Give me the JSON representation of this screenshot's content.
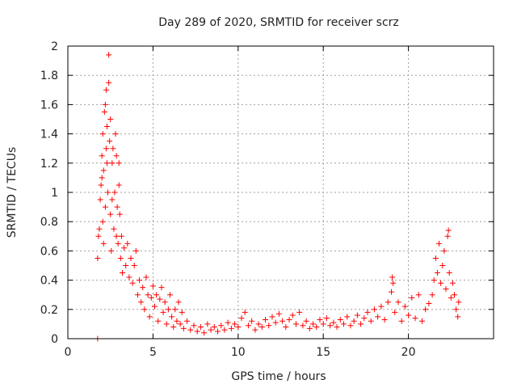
{
  "chart_data": {
    "type": "scatter",
    "title": "Day 289 of 2020, SRMTID for receiver scrz",
    "xlabel": "GPS time / hours",
    "ylabel": "SRMTID / TECUs",
    "xlim": [
      0,
      25
    ],
    "ylim": [
      0,
      2
    ],
    "xticks": [
      0,
      5,
      10,
      15,
      20
    ],
    "yticks": [
      0,
      0.2,
      0.4,
      0.6,
      0.8,
      1,
      1.2,
      1.4,
      1.6,
      1.8,
      2
    ],
    "grid": true,
    "legend": "none",
    "marker": "plus",
    "color": "#ff0000",
    "series": [
      {
        "name": "SRMTID",
        "points": [
          [
            1.75,
            0.0
          ],
          [
            1.75,
            0.55
          ],
          [
            1.8,
            0.7
          ],
          [
            1.85,
            0.75
          ],
          [
            1.9,
            0.95
          ],
          [
            1.95,
            1.05
          ],
          [
            2.0,
            1.1
          ],
          [
            2.0,
            1.25
          ],
          [
            2.05,
            0.8
          ],
          [
            2.05,
            1.4
          ],
          [
            2.1,
            0.65
          ],
          [
            2.1,
            1.15
          ],
          [
            2.15,
            1.55
          ],
          [
            2.2,
            0.9
          ],
          [
            2.2,
            1.6
          ],
          [
            2.25,
            1.3
          ],
          [
            2.25,
            1.7
          ],
          [
            2.3,
            1.2
          ],
          [
            2.3,
            1.45
          ],
          [
            2.35,
            1.0
          ],
          [
            2.4,
            1.75
          ],
          [
            2.4,
            1.94
          ],
          [
            2.45,
            1.35
          ],
          [
            2.5,
            0.85
          ],
          [
            2.5,
            1.5
          ],
          [
            2.55,
            0.6
          ],
          [
            2.6,
            0.95
          ],
          [
            2.6,
            1.2
          ],
          [
            2.65,
            1.3
          ],
          [
            2.7,
            0.75
          ],
          [
            2.75,
            1.0
          ],
          [
            2.8,
            1.4
          ],
          [
            2.85,
            0.7
          ],
          [
            2.85,
            1.25
          ],
          [
            2.9,
            0.9
          ],
          [
            2.95,
            0.65
          ],
          [
            3.0,
            1.05
          ],
          [
            3.0,
            1.2
          ],
          [
            3.05,
            0.85
          ],
          [
            3.1,
            0.55
          ],
          [
            3.15,
            0.7
          ],
          [
            3.2,
            0.45
          ],
          [
            3.3,
            0.62
          ],
          [
            3.4,
            0.5
          ],
          [
            3.5,
            0.65
          ],
          [
            3.6,
            0.42
          ],
          [
            3.7,
            0.55
          ],
          [
            3.8,
            0.38
          ],
          [
            3.9,
            0.5
          ],
          [
            4.0,
            0.6
          ],
          [
            4.1,
            0.3
          ],
          [
            4.2,
            0.4
          ],
          [
            4.3,
            0.25
          ],
          [
            4.4,
            0.35
          ],
          [
            4.5,
            0.2
          ],
          [
            4.6,
            0.42
          ],
          [
            4.7,
            0.3
          ],
          [
            4.8,
            0.15
          ],
          [
            4.9,
            0.28
          ],
          [
            5.0,
            0.36
          ],
          [
            5.1,
            0.22
          ],
          [
            5.2,
            0.3
          ],
          [
            5.3,
            0.12
          ],
          [
            5.4,
            0.27
          ],
          [
            5.5,
            0.35
          ],
          [
            5.6,
            0.18
          ],
          [
            5.7,
            0.25
          ],
          [
            5.8,
            0.1
          ],
          [
            5.9,
            0.2
          ],
          [
            6.0,
            0.3
          ],
          [
            6.1,
            0.15
          ],
          [
            6.2,
            0.08
          ],
          [
            6.3,
            0.2
          ],
          [
            6.4,
            0.12
          ],
          [
            6.5,
            0.25
          ],
          [
            6.6,
            0.1
          ],
          [
            6.7,
            0.18
          ],
          [
            6.8,
            0.07
          ],
          [
            7.0,
            0.12
          ],
          [
            7.2,
            0.06
          ],
          [
            7.4,
            0.09
          ],
          [
            7.6,
            0.05
          ],
          [
            7.8,
            0.08
          ],
          [
            8.0,
            0.04
          ],
          [
            8.2,
            0.1
          ],
          [
            8.4,
            0.06
          ],
          [
            8.6,
            0.08
          ],
          [
            8.8,
            0.05
          ],
          [
            9.0,
            0.09
          ],
          [
            9.2,
            0.06
          ],
          [
            9.4,
            0.11
          ],
          [
            9.6,
            0.07
          ],
          [
            9.8,
            0.1
          ],
          [
            10.0,
            0.08
          ],
          [
            10.2,
            0.14
          ],
          [
            10.4,
            0.18
          ],
          [
            10.6,
            0.09
          ],
          [
            10.8,
            0.12
          ],
          [
            11.0,
            0.06
          ],
          [
            11.2,
            0.1
          ],
          [
            11.4,
            0.08
          ],
          [
            11.6,
            0.13
          ],
          [
            11.8,
            0.09
          ],
          [
            12.0,
            0.15
          ],
          [
            12.2,
            0.11
          ],
          [
            12.4,
            0.17
          ],
          [
            12.6,
            0.12
          ],
          [
            12.8,
            0.08
          ],
          [
            13.0,
            0.13
          ],
          [
            13.2,
            0.16
          ],
          [
            13.4,
            0.1
          ],
          [
            13.6,
            0.18
          ],
          [
            13.8,
            0.09
          ],
          [
            14.0,
            0.12
          ],
          [
            14.2,
            0.07
          ],
          [
            14.4,
            0.1
          ],
          [
            14.6,
            0.08
          ],
          [
            14.8,
            0.13
          ],
          [
            15.0,
            0.1
          ],
          [
            15.2,
            0.14
          ],
          [
            15.4,
            0.09
          ],
          [
            15.6,
            0.11
          ],
          [
            15.8,
            0.08
          ],
          [
            16.0,
            0.13
          ],
          [
            16.2,
            0.1
          ],
          [
            16.4,
            0.15
          ],
          [
            16.6,
            0.09
          ],
          [
            16.8,
            0.12
          ],
          [
            17.0,
            0.16
          ],
          [
            17.2,
            0.1
          ],
          [
            17.4,
            0.14
          ],
          [
            17.6,
            0.18
          ],
          [
            17.8,
            0.12
          ],
          [
            18.0,
            0.2
          ],
          [
            18.2,
            0.15
          ],
          [
            18.4,
            0.22
          ],
          [
            18.6,
            0.13
          ],
          [
            18.8,
            0.25
          ],
          [
            19.0,
            0.32
          ],
          [
            19.05,
            0.42
          ],
          [
            19.1,
            0.38
          ],
          [
            19.2,
            0.18
          ],
          [
            19.4,
            0.25
          ],
          [
            19.6,
            0.12
          ],
          [
            19.8,
            0.22
          ],
          [
            20.0,
            0.16
          ],
          [
            20.2,
            0.28
          ],
          [
            20.4,
            0.14
          ],
          [
            20.6,
            0.3
          ],
          [
            20.8,
            0.12
          ],
          [
            21.0,
            0.2
          ],
          [
            21.2,
            0.24
          ],
          [
            21.4,
            0.3
          ],
          [
            21.5,
            0.4
          ],
          [
            21.6,
            0.55
          ],
          [
            21.7,
            0.45
          ],
          [
            21.8,
            0.65
          ],
          [
            21.9,
            0.38
          ],
          [
            22.0,
            0.5
          ],
          [
            22.1,
            0.6
          ],
          [
            22.2,
            0.34
          ],
          [
            22.3,
            0.7
          ],
          [
            22.35,
            0.74
          ],
          [
            22.4,
            0.45
          ],
          [
            22.5,
            0.28
          ],
          [
            22.6,
            0.38
          ],
          [
            22.7,
            0.3
          ],
          [
            22.8,
            0.2
          ],
          [
            22.9,
            0.15
          ],
          [
            22.95,
            0.25
          ]
        ]
      }
    ]
  }
}
